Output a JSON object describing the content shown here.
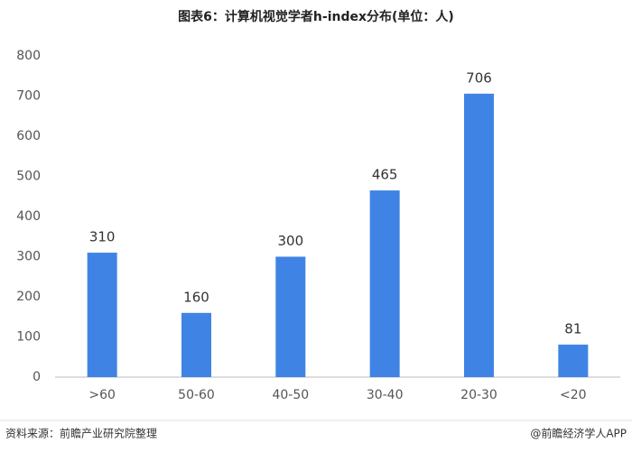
{
  "chart_data": {
    "type": "bar",
    "title": "图表6：计算机视觉学者h-index分布(单位：人)",
    "categories": [
      ">60",
      "50-60",
      "40-50",
      "30-40",
      "20-30",
      "<20"
    ],
    "values": [
      310,
      160,
      300,
      465,
      706,
      81
    ],
    "color": "#3f84e4",
    "ylim": [
      0,
      800
    ],
    "yticks": [
      0,
      100,
      200,
      300,
      400,
      500,
      600,
      700,
      800
    ],
    "grid": false,
    "source": "资料来源：前瞻产业研究院整理",
    "credit": "@前瞻经济学人APP"
  }
}
